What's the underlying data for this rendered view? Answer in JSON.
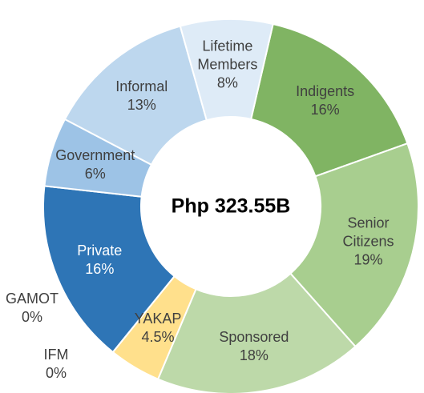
{
  "chart_data": {
    "type": "donut",
    "center_label": "Php 323.55B",
    "categories": [
      "Indigents",
      "Senior Citizens",
      "Sponsored",
      "YAKAP",
      "GAMOT",
      "IFM",
      "Private",
      "Government",
      "Informal",
      "Lifetime Members"
    ],
    "values": [
      16,
      19,
      18,
      4.5,
      0,
      0,
      16,
      6,
      13,
      8
    ],
    "value_labels": [
      "16%",
      "19%",
      "18%",
      "4.5%",
      "0%",
      "0%",
      "16%",
      "6%",
      "13%",
      "8%"
    ],
    "colors": [
      "#80b463",
      "#a8ce8f",
      "#bdd9a9",
      "#ffe08c",
      "#ffd966",
      "#9dc3e6",
      "#2e75b6",
      "#9dc3e6",
      "#bdd7ee",
      "#deebf7"
    ]
  }
}
